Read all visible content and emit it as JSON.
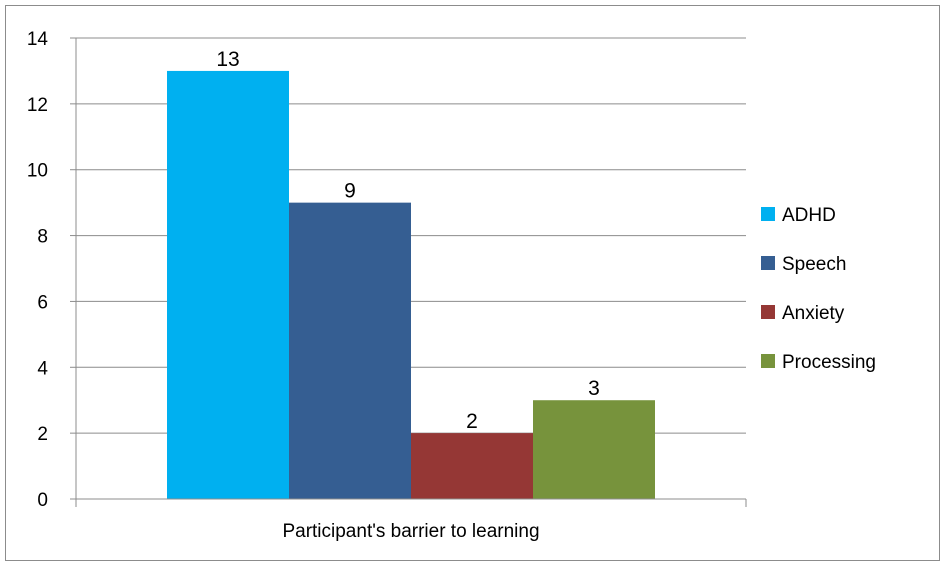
{
  "chart_data": {
    "type": "bar",
    "title": "",
    "xlabel": "Participant's barrier to learning",
    "ylabel": "",
    "ylim": [
      0,
      14
    ],
    "yticks": [
      0,
      2,
      4,
      6,
      8,
      10,
      12,
      14
    ],
    "grid": true,
    "legend_position": "right",
    "categories": [
      "Participant's barrier to learning"
    ],
    "series": [
      {
        "name": "ADHD",
        "values": [
          13
        ],
        "color": "#00b0f0"
      },
      {
        "name": "Speech",
        "values": [
          9
        ],
        "color": "#355e92"
      },
      {
        "name": "Anxiety",
        "values": [
          2
        ],
        "color": "#953735"
      },
      {
        "name": "Processing",
        "values": [
          3
        ],
        "color": "#77933c"
      }
    ]
  }
}
